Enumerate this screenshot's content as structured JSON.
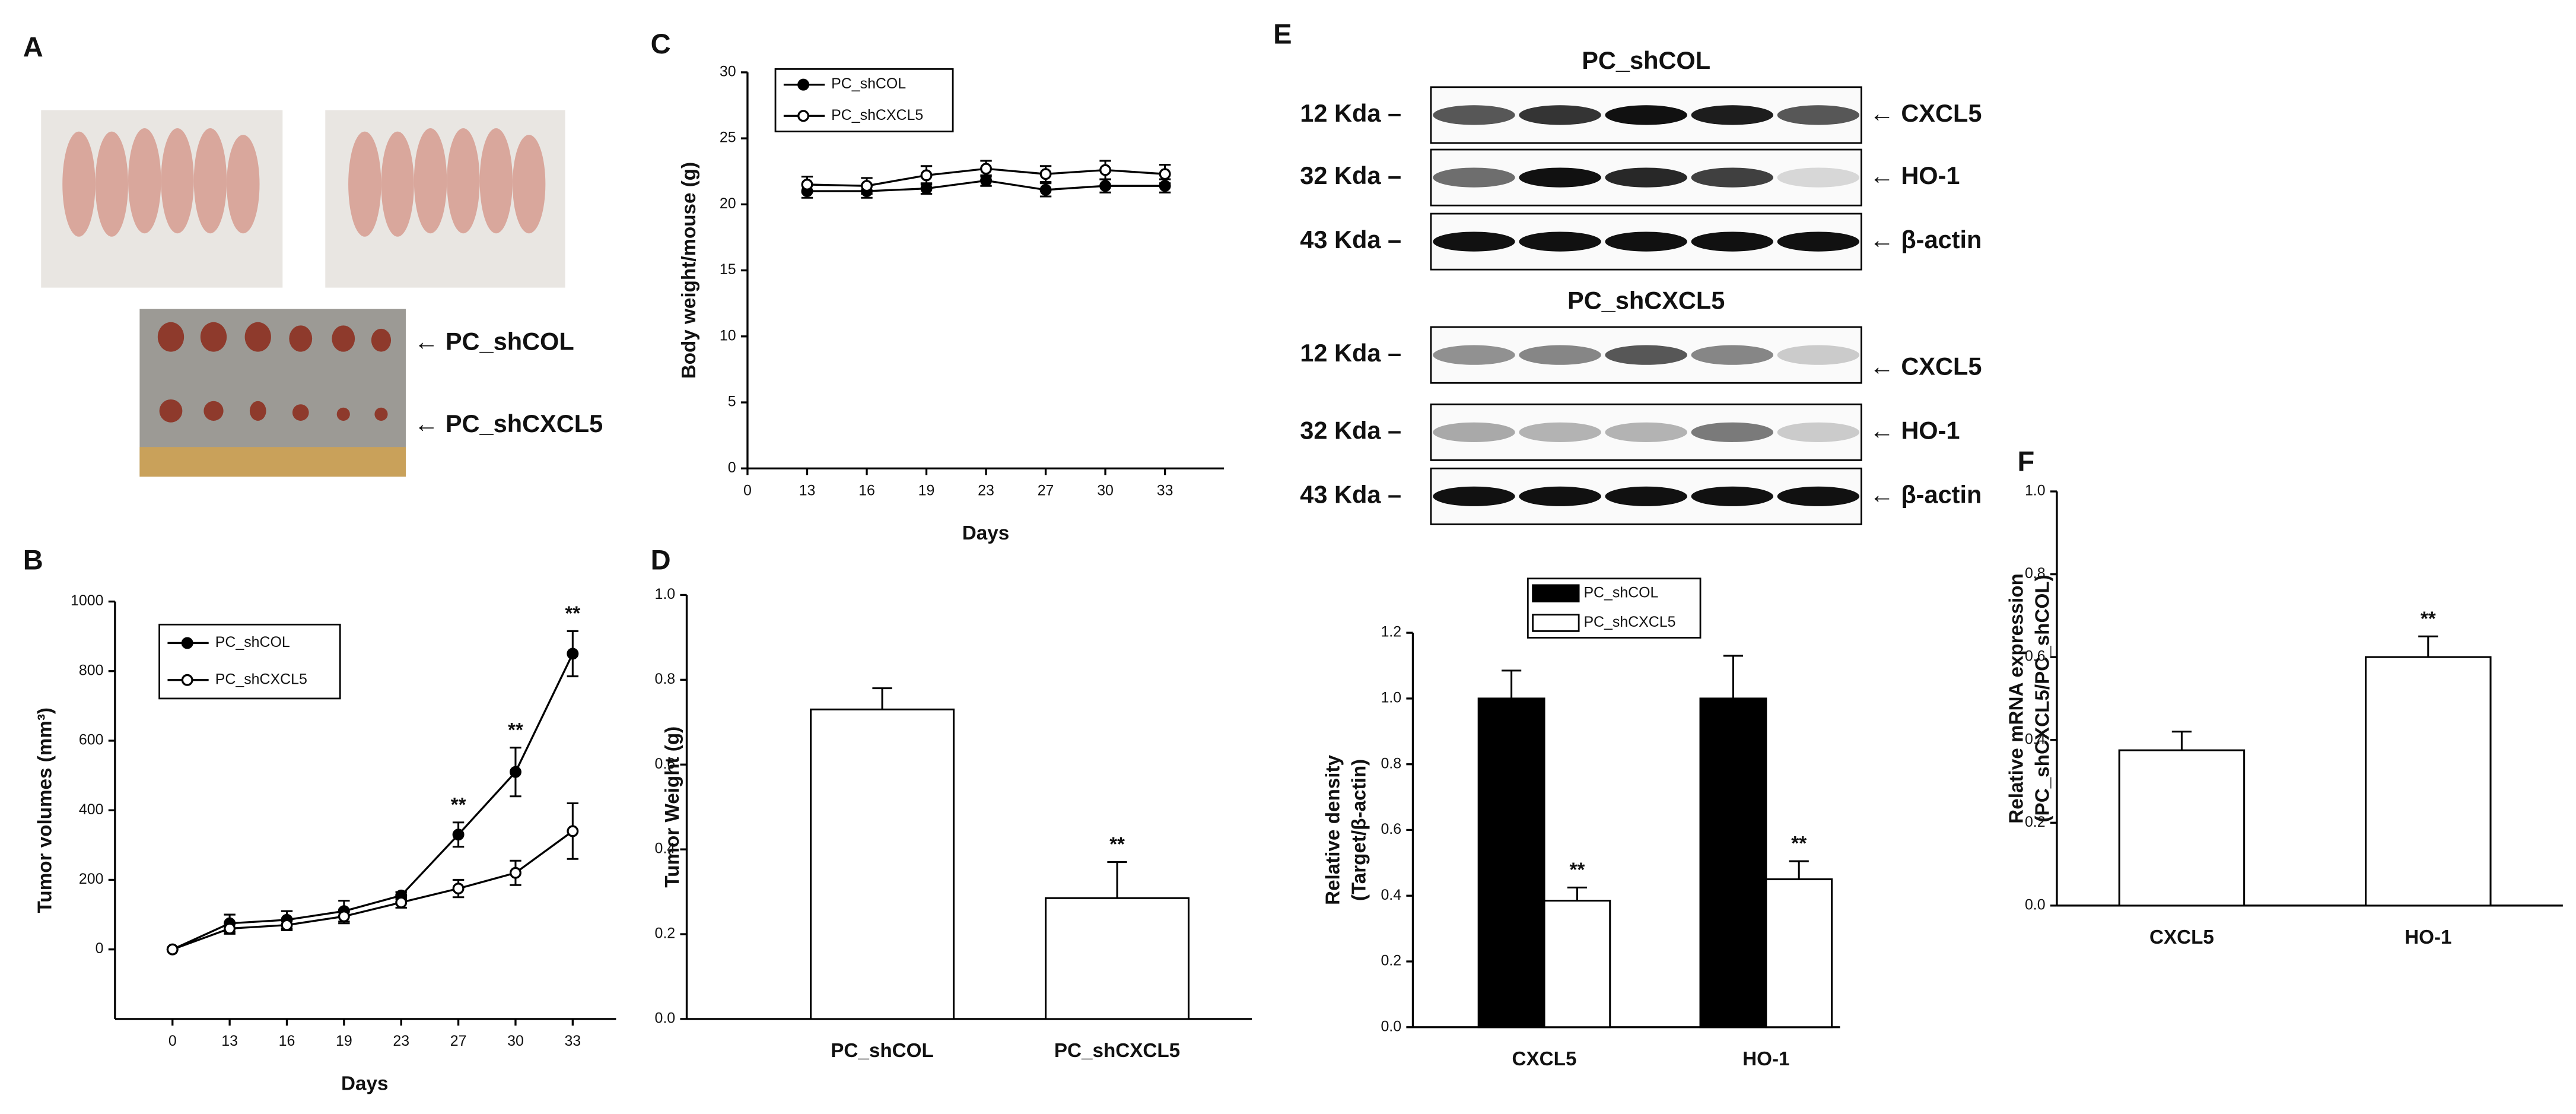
{
  "panel_letters": [
    "A",
    "B",
    "C",
    "D",
    "E",
    "F"
  ],
  "photo_labels": [
    "← PC_shCOL",
    "← PC_shCXCL5"
  ],
  "blots": [
    {
      "title": "PC_shCOL",
      "rows": [
        {
          "size": "12 Kda –",
          "target": "← CXCL5"
        },
        {
          "size": "32 Kda –",
          "target": "← HO-1"
        },
        {
          "size": "43 Kda –",
          "target": "← β-actin"
        }
      ]
    },
    {
      "title": "PC_shCXCL5",
      "rows": [
        {
          "size": "12 Kda –",
          "target": "← CXCL5"
        },
        {
          "size": "32 Kda –",
          "target": "← HO-1"
        },
        {
          "size": "43 Kda –",
          "target": "← β-actin"
        }
      ]
    }
  ],
  "chart_data": [
    {
      "type": "line",
      "x_label": "Days",
      "y_label": [
        "Tumor volumes (mm³)"
      ],
      "categories": [
        "0",
        "13",
        "16",
        "19",
        "23",
        "27",
        "30",
        "33"
      ],
      "ylim": [
        -200,
        1000
      ],
      "yticks": [
        0,
        200,
        400,
        600,
        800,
        1000
      ],
      "legend": "upper left",
      "series": [
        {
          "name": "PC_shCOL",
          "color": "#000000",
          "marker_fill": "#000000",
          "values": [
            0,
            75,
            85,
            110,
            155,
            330,
            510,
            850
          ],
          "errors": [
            0,
            25,
            25,
            30,
            10,
            35,
            70,
            65
          ],
          "significance": [
            null,
            null,
            null,
            null,
            null,
            "**",
            "**",
            "**"
          ]
        },
        {
          "name": "PC_shCXCL5",
          "color": "#000000",
          "marker_fill": "#ffffff",
          "values": [
            0,
            60,
            70,
            95,
            135,
            175,
            220,
            340
          ],
          "errors": [
            0,
            15,
            15,
            20,
            15,
            25,
            35,
            80
          ]
        }
      ]
    },
    {
      "type": "line",
      "x_label": "Days",
      "y_label": [
        "Body weight/mouse (g)"
      ],
      "categories": [
        "0",
        "13",
        "16",
        "19",
        "23",
        "27",
        "30",
        "33"
      ],
      "ylim": [
        0,
        30
      ],
      "yticks": [
        0,
        5,
        10,
        15,
        20,
        25,
        30
      ],
      "legend": "upper left",
      "series": [
        {
          "name": "PC_shCOL",
          "color": "#000000",
          "marker_fill": "#000000",
          "values": [
            null,
            21,
            21,
            21.2,
            21.8,
            21.1,
            21.4,
            21.4
          ],
          "errors": [
            null,
            0.5,
            0.5,
            0.4,
            0.4,
            0.5,
            0.5,
            0.5
          ]
        },
        {
          "name": "PC_shCXCL5",
          "color": "#000000",
          "marker_fill": "#ffffff",
          "values": [
            null,
            21.5,
            21.4,
            22.2,
            22.7,
            22.3,
            22.6,
            22.3
          ],
          "errors": [
            null,
            0.6,
            0.6,
            0.7,
            0.6,
            0.6,
            0.7,
            0.7
          ]
        }
      ]
    },
    {
      "type": "bar",
      "y_label": [
        "Tumor Weight (g)"
      ],
      "categories": [
        "PC_shCOL",
        "PC_shCXCL5"
      ],
      "values": [
        0.73,
        0.285
      ],
      "errors": [
        0.05,
        0.085
      ],
      "significance": [
        null,
        "**"
      ],
      "color": "#ffffff",
      "ylim": [
        0,
        1
      ],
      "yticks": [
        {
          "value": 0,
          "label": "0.0"
        },
        {
          "value": 0.2,
          "label": "0.2"
        },
        {
          "value": 0.4,
          "label": "0.4"
        },
        {
          "value": 0.6,
          "label": "0.6"
        },
        {
          "value": 0.8,
          "label": "0.8"
        },
        {
          "value": 1,
          "label": "1.0"
        }
      ]
    },
    {
      "type": "bar",
      "y_label": [
        "Relative density",
        "(Target/β-actin)"
      ],
      "categories": [
        "CXCL5",
        "HO-1"
      ],
      "ylim": [
        0,
        1.2
      ],
      "yticks": [
        {
          "value": 0,
          "label": "0.0"
        },
        {
          "value": 0.2,
          "label": "0.2"
        },
        {
          "value": 0.4,
          "label": "0.4"
        },
        {
          "value": 0.6,
          "label": "0.6"
        },
        {
          "value": 0.8,
          "label": "0.8"
        },
        {
          "value": 1,
          "label": "1.0"
        },
        {
          "value": 1.2,
          "label": "1.2"
        }
      ],
      "legend": "upper left",
      "series": [
        {
          "name": "PC_shCOL",
          "color": "#000000",
          "values": [
            1,
            1
          ],
          "errors": [
            0.085,
            0.13
          ]
        },
        {
          "name": "PC_shCXCL5",
          "color": "#ffffff",
          "values": [
            0.385,
            0.45
          ],
          "errors": [
            0.04,
            0.055
          ],
          "significance": [
            "**",
            "**"
          ]
        }
      ]
    },
    {
      "type": "bar",
      "y_label": [
        "Relative mRNA expression",
        "(PC_shCXCL5/PC_shCOL)"
      ],
      "categories": [
        "CXCL5",
        "HO-1"
      ],
      "values": [
        0.375,
        0.6
      ],
      "errors": [
        0.045,
        0.05
      ],
      "significance": [
        null,
        "**"
      ],
      "color": "#ffffff",
      "ylim": [
        0,
        1
      ],
      "yticks": [
        {
          "value": 0,
          "label": "0.0"
        },
        {
          "value": 0.2,
          "label": "0.2"
        },
        {
          "value": 0.4,
          "label": "0.4"
        },
        {
          "value": 0.6,
          "label": "0.6"
        },
        {
          "value": 0.8,
          "label": "0.8"
        },
        {
          "value": 1,
          "label": "1.0"
        }
      ]
    }
  ]
}
